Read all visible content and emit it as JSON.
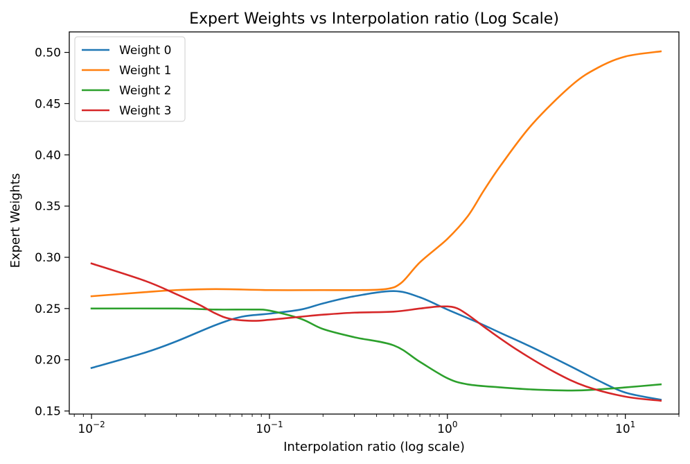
{
  "chart_data": {
    "type": "line",
    "title": "Expert Weights vs Interpolation ratio (Log Scale)",
    "xlabel": "Interpolation ratio (log scale)",
    "ylabel": "Expert Weights",
    "xscale": "log",
    "xlim": [
      0.0075,
      20
    ],
    "ylim": [
      0.147,
      0.52
    ],
    "xticks": [
      {
        "value": 0.01,
        "base": "10",
        "exp": "−2"
      },
      {
        "value": 0.1,
        "base": "10",
        "exp": "−1"
      },
      {
        "value": 1,
        "base": "10",
        "exp": "0"
      },
      {
        "value": 10,
        "base": "10",
        "exp": "1"
      }
    ],
    "yticks": [
      0.15,
      0.2,
      0.25,
      0.3,
      0.35,
      0.4,
      0.45,
      0.5
    ],
    "ytick_labels": [
      "0.15",
      "0.20",
      "0.25",
      "0.30",
      "0.35",
      "0.40",
      "0.45",
      "0.50"
    ],
    "grid": false,
    "legend": "top-left",
    "series": [
      {
        "name": "Weight 0",
        "color": "#1f77b4",
        "x": [
          0.01,
          0.02,
          0.03,
          0.05,
          0.07,
          0.1,
          0.15,
          0.2,
          0.3,
          0.5,
          0.7,
          1.0,
          1.5,
          2,
          3,
          5,
          7,
          10,
          15.8
        ],
        "y": [
          0.192,
          0.207,
          0.218,
          0.234,
          0.242,
          0.245,
          0.249,
          0.255,
          0.262,
          0.267,
          0.261,
          0.249,
          0.236,
          0.226,
          0.212,
          0.193,
          0.18,
          0.168,
          0.161
        ]
      },
      {
        "name": "Weight 1",
        "color": "#ff7f0e",
        "x": [
          0.01,
          0.02,
          0.03,
          0.05,
          0.1,
          0.2,
          0.3,
          0.45,
          0.55,
          0.7,
          1.0,
          1.3,
          1.6,
          2,
          3,
          5,
          7,
          10,
          15.8
        ],
        "y": [
          0.262,
          0.266,
          0.268,
          0.269,
          0.268,
          0.268,
          0.268,
          0.269,
          0.275,
          0.295,
          0.318,
          0.34,
          0.365,
          0.39,
          0.43,
          0.468,
          0.485,
          0.496,
          0.501
        ]
      },
      {
        "name": "Weight 2",
        "color": "#2ca02c",
        "x": [
          0.01,
          0.03,
          0.05,
          0.08,
          0.1,
          0.15,
          0.2,
          0.3,
          0.5,
          0.7,
          1.0,
          1.3,
          2,
          3,
          5,
          7,
          10,
          15.8
        ],
        "y": [
          0.25,
          0.25,
          0.249,
          0.249,
          0.248,
          0.24,
          0.23,
          0.222,
          0.214,
          0.198,
          0.182,
          0.176,
          0.173,
          0.171,
          0.17,
          0.171,
          0.173,
          0.176
        ]
      },
      {
        "name": "Weight 3",
        "color": "#d62728",
        "x": [
          0.01,
          0.02,
          0.03,
          0.04,
          0.05,
          0.06,
          0.08,
          0.1,
          0.15,
          0.2,
          0.3,
          0.5,
          0.7,
          0.9,
          1.1,
          1.3,
          1.7,
          2.5,
          4,
          6,
          10,
          15.8
        ],
        "y": [
          0.294,
          0.277,
          0.264,
          0.254,
          0.245,
          0.24,
          0.238,
          0.239,
          0.242,
          0.244,
          0.246,
          0.247,
          0.25,
          0.252,
          0.251,
          0.244,
          0.229,
          0.209,
          0.188,
          0.174,
          0.164,
          0.16
        ]
      }
    ]
  }
}
